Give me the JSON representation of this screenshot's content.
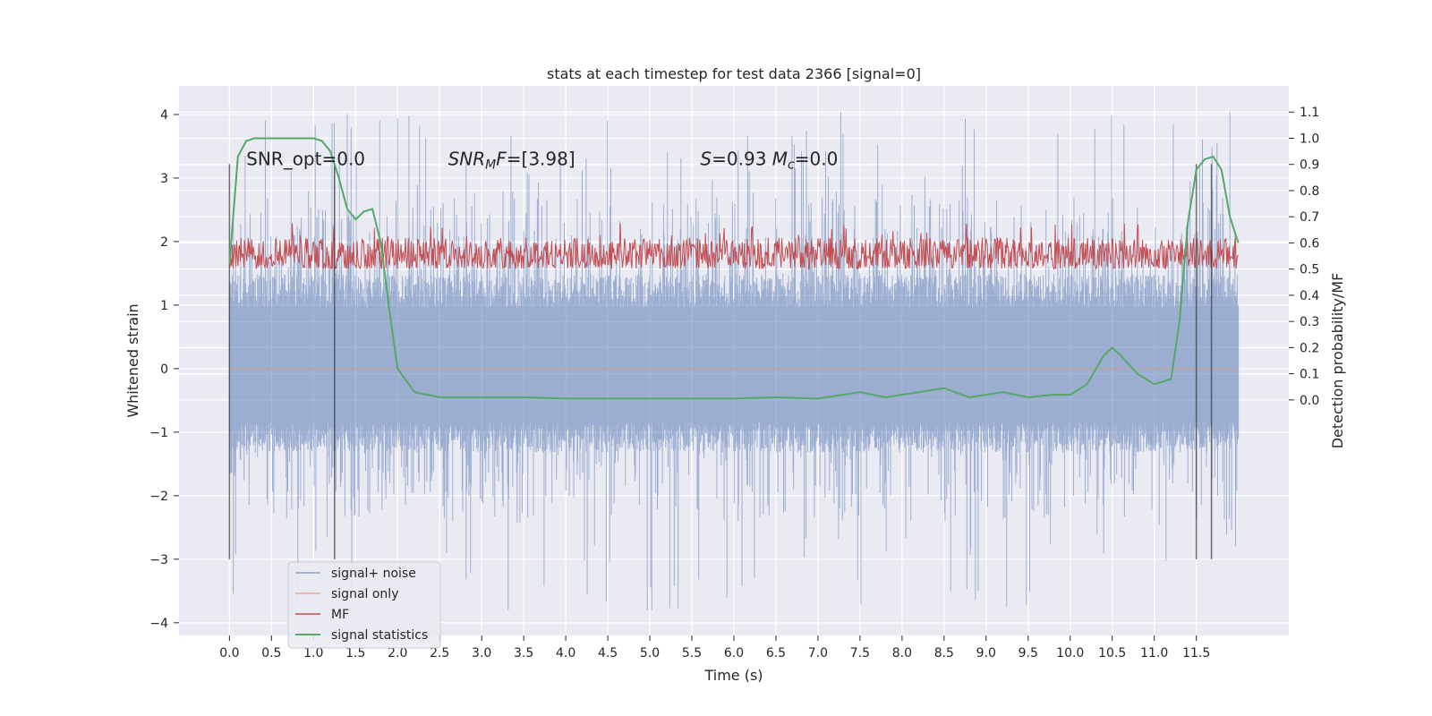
{
  "chart_data": {
    "type": "line",
    "title": "stats at each timestep for test data 2366 [signal=0]",
    "xlabel": "Time (s)",
    "ylabel": "Whitened strain",
    "ylabel_right": "Detection probability/MF",
    "xlim": [
      -0.6,
      12.6
    ],
    "ylim": [
      -4.2,
      4.45
    ],
    "ylim_right": [
      -0.9,
      1.2
    ],
    "x_ticks": [
      "0.0",
      "0.5",
      "1.0",
      "1.5",
      "2.0",
      "2.5",
      "3.0",
      "3.5",
      "4.0",
      "4.5",
      "5.0",
      "5.5",
      "6.0",
      "6.5",
      "7.0",
      "7.5",
      "8.0",
      "8.5",
      "9.0",
      "9.5",
      "10.0",
      "10.5",
      "11.0",
      "11.5"
    ],
    "y_ticks": [
      -4,
      -3,
      -2,
      -1,
      0,
      1,
      2,
      3,
      4
    ],
    "y_ticks_right": [
      "0.0",
      "0.1",
      "0.2",
      "0.3",
      "0.4",
      "0.5",
      "0.6",
      "0.7",
      "0.8",
      "0.9",
      "1.0",
      "1.1"
    ],
    "grid": true,
    "legend_position": "lower-left",
    "annotations": [
      {
        "x": 0.2,
        "y": 3.3,
        "text": "SNR_opt=0.0",
        "math": false
      },
      {
        "x": 2.6,
        "y": 3.3,
        "parts": [
          {
            "t": "SNR",
            "i": true
          },
          {
            "t": "M",
            "i": true,
            "sub": true
          },
          {
            "t": "F",
            "i": true
          },
          {
            "t": "=[3.98]",
            "i": false
          }
        ]
      },
      {
        "x": 5.6,
        "y": 3.3,
        "parts": [
          {
            "t": "S",
            "i": true
          },
          {
            "t": "=0.93   ",
            "i": false
          },
          {
            "t": "M",
            "i": true
          },
          {
            "t": "c",
            "i": true,
            "sub": true
          },
          {
            "t": "=0.0",
            "i": false
          }
        ]
      }
    ],
    "vertical_lines": [
      {
        "x": 0.0,
        "y0": -3.0,
        "y1": 3.22
      },
      {
        "x": 1.25,
        "y0": -3.0,
        "y1": 3.22
      },
      {
        "x": 11.5,
        "y0": -3.0,
        "y1": 3.22
      },
      {
        "x": 11.68,
        "y0": -3.0,
        "y1": 3.22
      }
    ],
    "series": [
      {
        "name": "signal+ noise",
        "color": "#4c72b0",
        "kind": "noise",
        "x_range": [
          0.0,
          12.0
        ],
        "core_range": [
          -1.2,
          1.35
        ],
        "spike_max": 4.1,
        "spike_min": -3.9
      },
      {
        "name": "signal only",
        "color": "#dd8452",
        "kind": "flat",
        "x_range": [
          0.0,
          12.0
        ],
        "value": 0.0
      },
      {
        "name": "MF",
        "color": "#c44e52",
        "kind": "mf",
        "x_range": [
          0.0,
          12.0
        ],
        "range_right": [
          0.5,
          0.62
        ],
        "spike_max_right": 0.68
      },
      {
        "name": "signal statistics",
        "color": "#55a868",
        "kind": "line",
        "axis": "right",
        "x": [
          0.0,
          0.1,
          0.2,
          0.3,
          0.5,
          0.8,
          1.0,
          1.1,
          1.2,
          1.3,
          1.4,
          1.5,
          1.6,
          1.7,
          1.8,
          1.9,
          2.0,
          2.2,
          2.5,
          3.0,
          3.5,
          4.0,
          4.5,
          5.0,
          5.5,
          6.0,
          6.5,
          7.0,
          7.5,
          7.8,
          8.0,
          8.3,
          8.5,
          8.8,
          9.0,
          9.2,
          9.5,
          9.8,
          10.0,
          10.2,
          10.4,
          10.5,
          10.6,
          10.8,
          11.0,
          11.2,
          11.3,
          11.4,
          11.5,
          11.6,
          11.7,
          11.8,
          11.9,
          12.0
        ],
        "y": [
          0.52,
          0.93,
          0.99,
          1.0,
          1.0,
          1.0,
          1.0,
          0.99,
          0.95,
          0.85,
          0.73,
          0.69,
          0.72,
          0.73,
          0.6,
          0.35,
          0.12,
          0.03,
          0.01,
          0.01,
          0.01,
          0.005,
          0.005,
          0.005,
          0.005,
          0.005,
          0.01,
          0.005,
          0.03,
          0.01,
          0.02,
          0.035,
          0.045,
          0.01,
          0.02,
          0.03,
          0.01,
          0.02,
          0.02,
          0.06,
          0.17,
          0.2,
          0.17,
          0.1,
          0.06,
          0.08,
          0.3,
          0.68,
          0.88,
          0.92,
          0.93,
          0.88,
          0.7,
          0.6
        ]
      }
    ]
  }
}
